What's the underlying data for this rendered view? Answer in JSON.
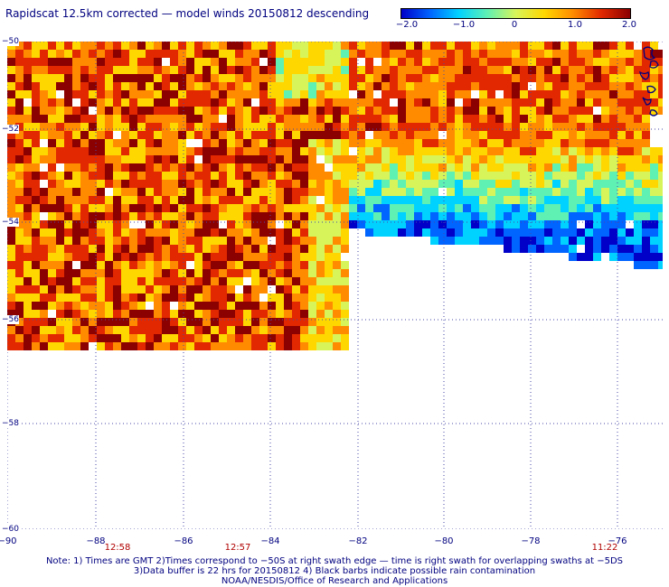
{
  "title": "Rapidscat 12.5km corrected — model winds 20150812 descending",
  "colorbar": {
    "ticks": [
      "−2.0",
      "−1.0",
      "0",
      "1.0",
      "2.0"
    ],
    "colors": [
      "#0000c8",
      "#0064ff",
      "#00d2ff",
      "#5ff0b4",
      "#d7f55a",
      "#ffd700",
      "#ff8c00",
      "#e12800",
      "#8b0000"
    ]
  },
  "axes": {
    "x_ticks": [
      "−90",
      "−88",
      "−86",
      "−84",
      "−82",
      "−80",
      "−78",
      "−76"
    ],
    "y_ticks": [
      "−50",
      "−52",
      "−54",
      "−56",
      "−58",
      "−60"
    ]
  },
  "swath_times": [
    "12:58",
    "12:57",
    "11:22"
  ],
  "notes": [
    "Note: 1) Times are GMT 2)Times correspond to −50S at right swath edge — time is right swath for overlapping swaths at −5DS",
    "3)Data buffer is 22 hrs for 20150812 4) Black barbs indicate possible rain contamination",
    "NOAA/NESDIS/Office of Research and Applications"
  ]
}
